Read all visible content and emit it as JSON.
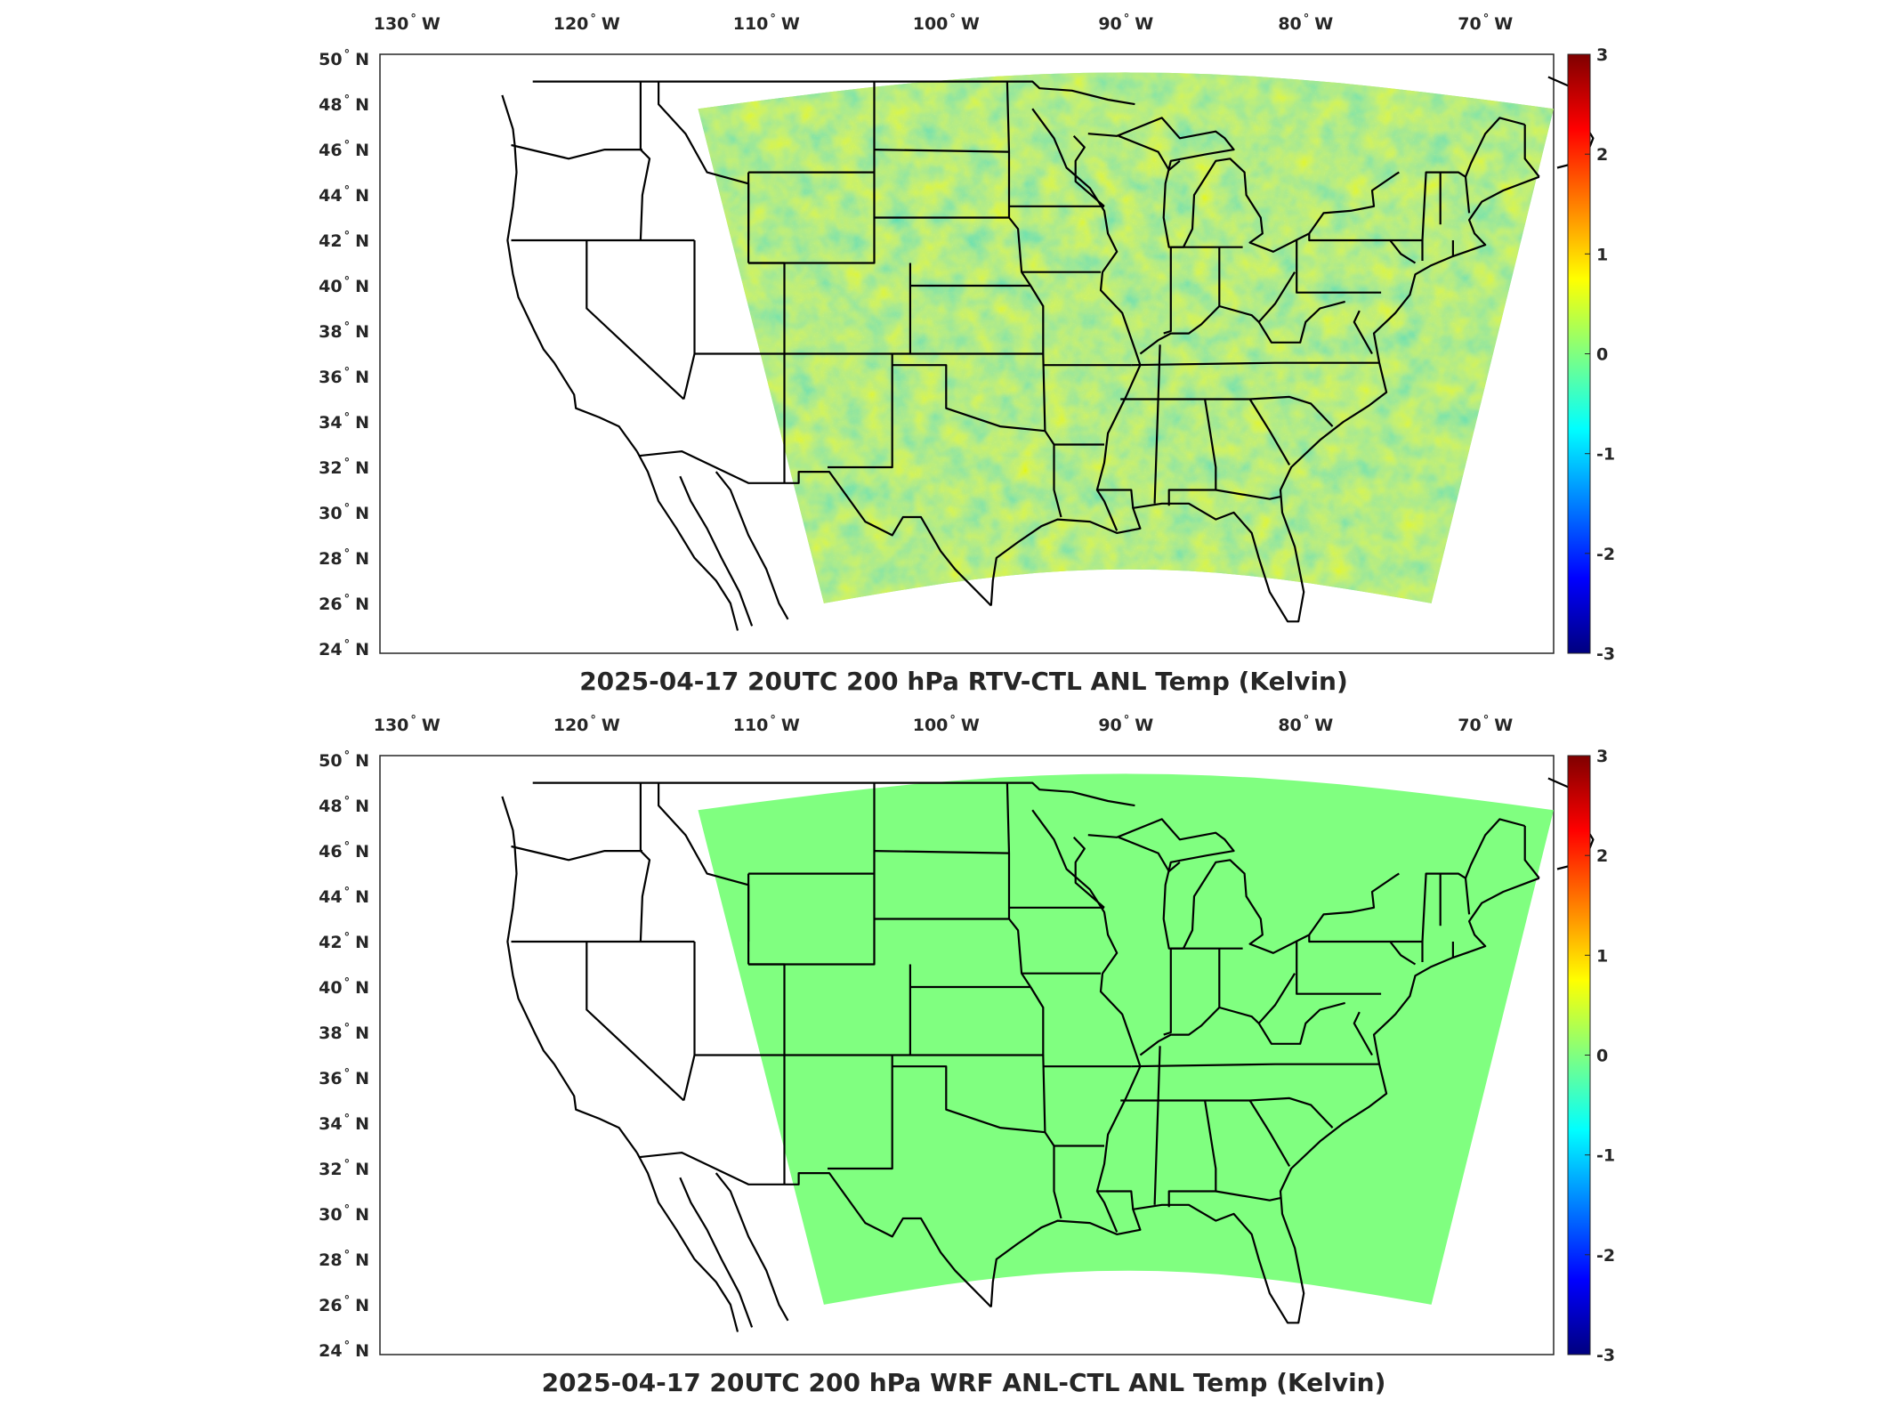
{
  "figure": {
    "panels": [
      {
        "id": "top",
        "title": "2025-04-17 20UTC 200 hPa RTV-CTL ANL Temp (Kelvin)",
        "variable": "RTV-CTL",
        "field": "noisy"
      },
      {
        "id": "bottom",
        "title": "2025-04-17 20UTC 200 hPa WRF ANL-CTL ANL Temp (Kelvin)",
        "variable": "WRF ANL-CTL",
        "field": "uniform"
      }
    ],
    "lon_ticks": [
      {
        "value": -130,
        "label": "130",
        "hemi": "W"
      },
      {
        "value": -120,
        "label": "120",
        "hemi": "W"
      },
      {
        "value": -110,
        "label": "110",
        "hemi": "W"
      },
      {
        "value": -100,
        "label": "100",
        "hemi": "W"
      },
      {
        "value": -90,
        "label": "90",
        "hemi": "W"
      },
      {
        "value": -80,
        "label": "80",
        "hemi": "W"
      },
      {
        "value": -70,
        "label": "70",
        "hemi": "W"
      }
    ],
    "lat_ticks": [
      {
        "value": 50,
        "label": "50",
        "hemi": "N"
      },
      {
        "value": 48,
        "label": "48",
        "hemi": "N"
      },
      {
        "value": 46,
        "label": "46",
        "hemi": "N"
      },
      {
        "value": 44,
        "label": "44",
        "hemi": "N"
      },
      {
        "value": 42,
        "label": "42",
        "hemi": "N"
      },
      {
        "value": 40,
        "label": "40",
        "hemi": "N"
      },
      {
        "value": 38,
        "label": "38",
        "hemi": "N"
      },
      {
        "value": 36,
        "label": "36",
        "hemi": "N"
      },
      {
        "value": 34,
        "label": "34",
        "hemi": "N"
      },
      {
        "value": 32,
        "label": "32",
        "hemi": "N"
      },
      {
        "value": 30,
        "label": "30",
        "hemi": "N"
      },
      {
        "value": 28,
        "label": "28",
        "hemi": "N"
      },
      {
        "value": 26,
        "label": "26",
        "hemi": "N"
      },
      {
        "value": 24,
        "label": "24",
        "hemi": "N"
      }
    ],
    "degree_symbol": "°",
    "colorbar": {
      "ticks": [
        "3",
        "2",
        "1",
        "0",
        "-1",
        "-2",
        "-3"
      ],
      "colormap": [
        "#00007f",
        "#0000ff",
        "#007fff",
        "#00ffff",
        "#7fff7f",
        "#ffff00",
        "#ff7f00",
        "#ff0000",
        "#7f0000"
      ],
      "range": [
        -3,
        3
      ]
    },
    "colors": {
      "uniform_field": "#80ff80",
      "noisy_base": "#8fe86f"
    }
  }
}
